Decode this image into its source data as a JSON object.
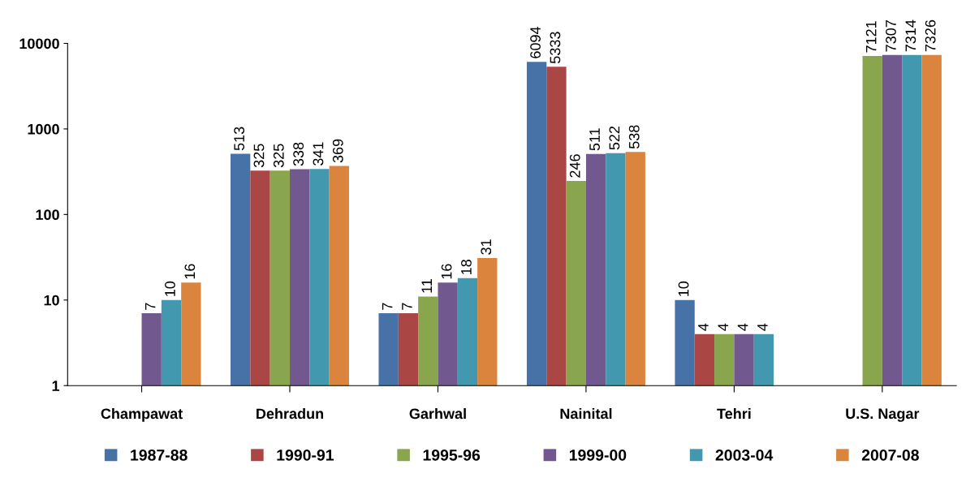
{
  "chart_data": {
    "type": "bar",
    "categories": [
      "Champawat",
      "Dehradun",
      "Garhwal",
      "Nainital",
      "Tehri",
      "U.S. Nagar"
    ],
    "series": [
      {
        "name": "1987-88",
        "color": "#4672a8",
        "values": [
          null,
          513,
          7,
          6094,
          10,
          null
        ]
      },
      {
        "name": "1990-91",
        "color": "#aa4643",
        "values": [
          null,
          325,
          7,
          5333,
          4,
          null
        ]
      },
      {
        "name": "1995-96",
        "color": "#89a54e",
        "values": [
          null,
          325,
          11,
          246,
          4,
          7121
        ]
      },
      {
        "name": "1999-00",
        "color": "#71588f",
        "values": [
          7,
          338,
          16,
          511,
          4,
          7307
        ]
      },
      {
        "name": "2003-04",
        "color": "#4198af",
        "values": [
          10,
          341,
          18,
          522,
          4,
          7314
        ]
      },
      {
        "name": "2007-08",
        "color": "#db843d",
        "values": [
          16,
          369,
          31,
          538,
          null,
          7326
        ]
      }
    ],
    "log": true,
    "ylim": [
      1,
      10000
    ],
    "yticks": [
      1,
      10,
      100,
      1000,
      10000
    ],
    "grid": false,
    "legend": "bottom",
    "data_labels": true
  }
}
